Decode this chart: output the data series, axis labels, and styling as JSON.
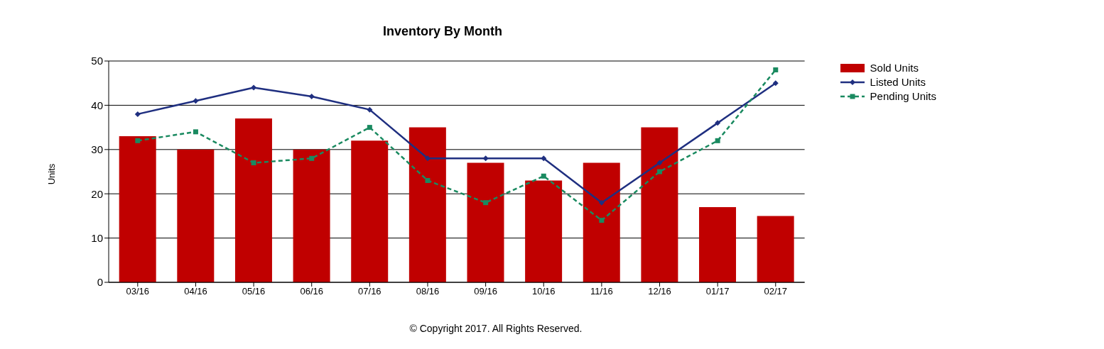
{
  "chart_data": {
    "type": "bar",
    "title": "Inventory By Month",
    "ylabel": "Units",
    "categories": [
      "03/16",
      "04/16",
      "05/16",
      "06/16",
      "07/16",
      "08/16",
      "09/16",
      "10/16",
      "11/16",
      "12/16",
      "01/17",
      "02/17"
    ],
    "series": [
      {
        "name": "Sold Units",
        "color": "#c00000",
        "values": [
          33,
          30,
          37,
          30,
          32,
          35,
          27,
          23,
          27,
          35,
          17,
          15
        ]
      },
      {
        "name": "Listed Units",
        "type": "line",
        "color": "#1f2f80",
        "marker": "diamond",
        "line_style": "solid",
        "values": [
          38,
          41,
          44,
          42,
          39,
          28,
          28,
          28,
          18,
          27,
          36,
          45
        ]
      },
      {
        "name": "Pending Units",
        "type": "line",
        "color": "#1a8a60",
        "marker": "square",
        "line_style": "dashed",
        "values": [
          32,
          34,
          27,
          28,
          35,
          23,
          18,
          24,
          14,
          25,
          32,
          48
        ]
      }
    ],
    "ylim": [
      0,
      50
    ],
    "yticks": [
      0,
      10,
      20,
      30,
      40,
      50
    ],
    "grid": "y",
    "legend": "top right",
    "annotations": [
      "© Copyright 2017.  All Rights Reserved."
    ]
  }
}
